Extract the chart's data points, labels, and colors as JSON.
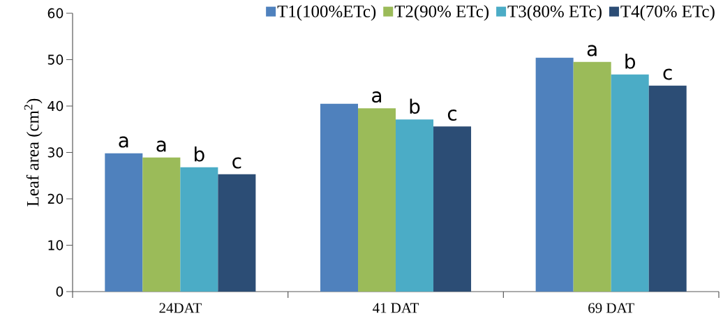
{
  "chart_data": {
    "type": "bar",
    "ylabel": "Leaf area (cm$^{2}$)",
    "categories": [
      "24DAT",
      "41 DAT",
      "69 DAT"
    ],
    "series": [
      {
        "name": "T1(100%ETc)",
        "color": "#4f81bd",
        "values": [
          29.8,
          40.5,
          50.4
        ],
        "value_labels": [
          "a",
          null,
          null
        ]
      },
      {
        "name": "T2(90% ETc)",
        "color": "#9bbb59",
        "values": [
          28.9,
          39.5,
          49.5
        ],
        "value_labels": [
          "a",
          "a",
          "a"
        ]
      },
      {
        "name": "T3(80% ETc)",
        "color": "#4bacc6",
        "values": [
          26.8,
          37.1,
          46.8
        ],
        "value_labels": [
          "b",
          "b",
          "b"
        ]
      },
      {
        "name": "T4(70% ETc)",
        "color": "#2c4d75",
        "values": [
          25.3,
          35.6,
          44.4
        ],
        "value_labels": [
          "c",
          "c",
          "c"
        ]
      }
    ],
    "ylim": [
      0,
      60
    ],
    "yticks": [
      0,
      10,
      20,
      30,
      40,
      50,
      60
    ],
    "grid": false,
    "legend": "top right"
  }
}
